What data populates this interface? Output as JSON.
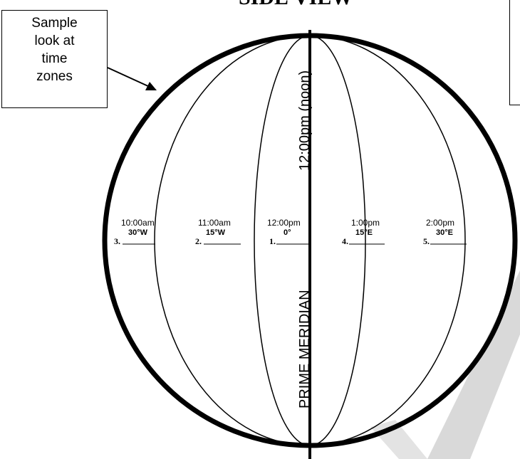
{
  "title": "SIDE VIEW",
  "callout": {
    "lines": [
      "Sample",
      "look at",
      "time",
      "zones"
    ]
  },
  "meridian": {
    "upper_label": "12:00pm (noon)",
    "lower_label": "PRIME MERIDIAN"
  },
  "zones": [
    {
      "number": "3.",
      "time": "10:00am",
      "degree": "30°W"
    },
    {
      "number": "2.",
      "time": "11:00am",
      "degree": "15°W"
    },
    {
      "number": "1.",
      "time": "12:00pm",
      "degree": "0°"
    },
    {
      "number": "4.",
      "time": "1:00pm",
      "degree": "15°E"
    },
    {
      "number": "5.",
      "time": "2:00pm",
      "degree": "30°E"
    }
  ],
  "colors": {
    "ink": "#000000",
    "watermark": "#d9d9d9"
  }
}
